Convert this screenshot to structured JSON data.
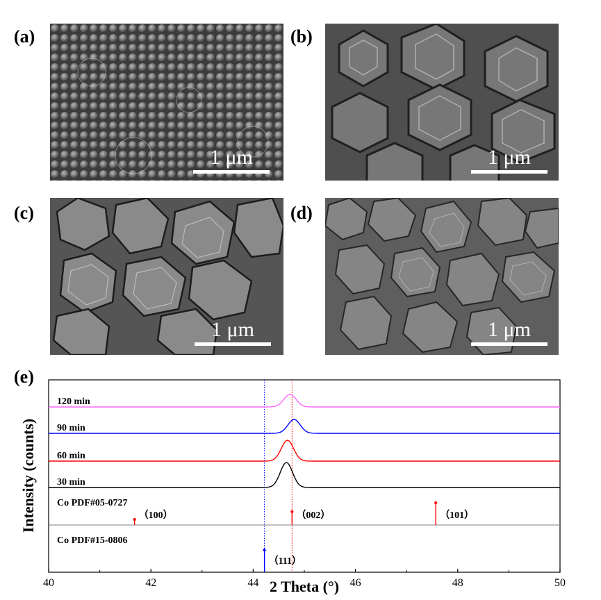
{
  "panels": {
    "a": {
      "label": "(a)",
      "scale": "1 μm"
    },
    "b": {
      "label": "(b)",
      "scale": "1 μm"
    },
    "c": {
      "label": "(c)",
      "scale": "1 μm"
    },
    "d": {
      "label": "(d)",
      "scale": "1 μm"
    },
    "e": {
      "label": "(e)"
    }
  },
  "chart_data": {
    "type": "line",
    "xlabel": "2 Theta (°)",
    "ylabel": "Intensity (counts)",
    "xlim": [
      40,
      50
    ],
    "xticks": [
      40,
      42,
      44,
      46,
      48,
      50
    ],
    "series": [
      {
        "name": "120 min",
        "color": "#ff66ff",
        "peak_x": 44.72,
        "peak_height": 0.45
      },
      {
        "name": "90 min",
        "color": "#0000ff",
        "peak_x": 44.8,
        "peak_height": 0.5
      },
      {
        "name": "60 min",
        "color": "#ff0000",
        "peak_x": 44.67,
        "peak_height": 0.75
      },
      {
        "name": "30 min",
        "color": "#000000",
        "peak_x": 44.65,
        "peak_height": 0.9
      }
    ],
    "references": [
      {
        "name": "Co PDF#05-0727",
        "color": "#ff0000",
        "peaks": [
          {
            "x": 41.68,
            "label": "（100）",
            "rel_intensity": 0.25
          },
          {
            "x": 44.76,
            "label": "（002）",
            "rel_intensity": 0.6
          },
          {
            "x": 47.57,
            "label": "（101）",
            "rel_intensity": 1.0
          }
        ]
      },
      {
        "name": "Co PDF#15-0806",
        "color": "#0000ff",
        "peaks": [
          {
            "x": 44.22,
            "label": "（111）",
            "rel_intensity": 1.0
          }
        ]
      }
    ],
    "guide_lines": [
      {
        "x": 44.22,
        "color": "#0000ff",
        "style": "dotted"
      },
      {
        "x": 44.76,
        "color": "#ff0000",
        "style": "dotted"
      }
    ]
  }
}
